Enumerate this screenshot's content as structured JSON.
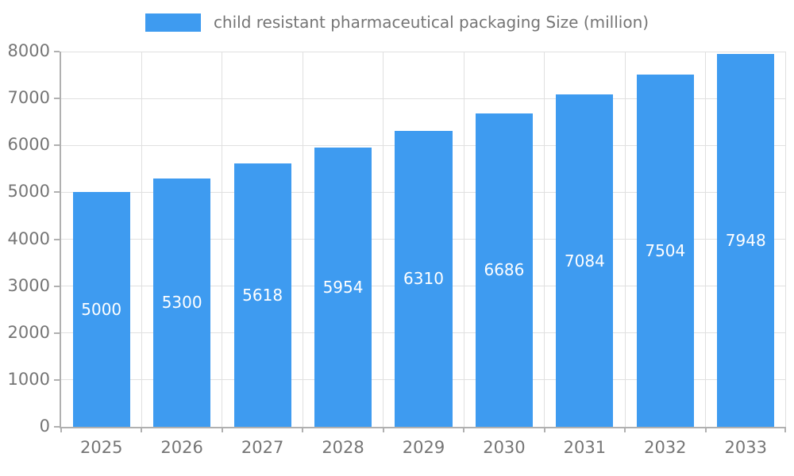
{
  "chart_data": {
    "type": "bar",
    "title": "",
    "legend": "child resistant pharmaceutical packaging Size (million)",
    "categories": [
      "2025",
      "2026",
      "2027",
      "2028",
      "2029",
      "2030",
      "2031",
      "2032",
      "2033"
    ],
    "values": [
      5000,
      5300,
      5618,
      5954,
      6310,
      6686,
      7084,
      7504,
      7948
    ],
    "xlabel": "",
    "ylabel": "",
    "ylim": [
      0,
      8000
    ],
    "ytick_step": 1000,
    "grid": true,
    "legend_position": "top",
    "bar_color": "#3E9BF0",
    "value_label_color": "#ffffff",
    "axis_text_color": "#757575",
    "gridline_color": "#e0e0e0",
    "axis_line_color": "#b0b0b0"
  }
}
